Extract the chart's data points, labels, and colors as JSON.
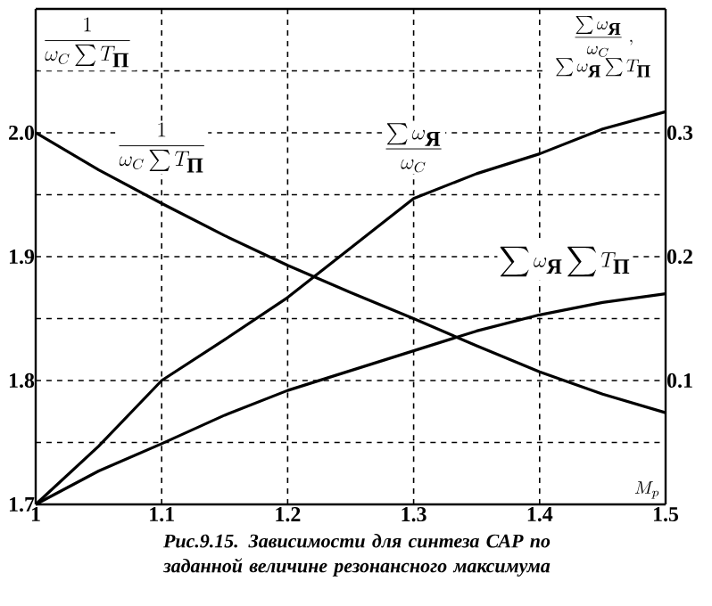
{
  "chart_data": {
    "type": "line",
    "xlabel": "M_{p}",
    "ylabel": "\\frac{1}{\\omega_{C}\\sum T_{\\mbox{П}}}",
    "y2label": "\\begin{array}{c}\\dfrac{\\sum\\omega_{\\mbox{Я}}}{\\omega_{C}}\\;,\\\\ \\sum\\omega_{\\mbox{Я}}\\sum T_{\\mbox{П}}\\end{array}",
    "x": [
      1,
      1.05,
      1.1,
      1.15,
      1.2,
      1.25,
      1.3,
      1.35,
      1.4,
      1.45,
      1.5
    ],
    "series": [
      {
        "name": "\\frac{1}{\\omega_{C}\\sum T_{\\mbox{П}}}",
        "color": "#000000",
        "values": [
          2.0,
          1.97,
          1.943,
          1.917,
          1.893,
          1.871,
          1.85,
          1.828,
          1.807,
          1.789,
          1.774
        ]
      },
      {
        "name": "\\frac{\\sum\\omega_{\\mbox{Я}}}{\\omega_{C}}",
        "color": "#000000",
        "axis": "y2",
        "values": [
          0,
          0.047,
          0.1,
          0.133,
          0.167,
          0.207,
          0.247,
          0.267,
          0.283,
          0.303,
          0.317
        ]
      },
      {
        "name": "\\sum\\omega_{\\mbox{Я}}\\sum T_{\\mbox{П}}",
        "color": "#000000",
        "axis": "y2",
        "values": [
          0,
          0.027,
          0.049,
          0.072,
          0.092,
          0.108,
          0.124,
          0.14,
          0.153,
          0.163,
          0.17
        ]
      }
    ],
    "xlim": [
      1,
      1.5
    ],
    "xticks": [
      1,
      1.1,
      1.2,
      1.3,
      1.4,
      1.5
    ],
    "ylim": [
      1.7,
      2.1
    ],
    "yticks": [
      1.7,
      {
        "value": 1.75,
        "label": null
      },
      1.8,
      {
        "value": 1.85,
        "label": null
      },
      1.9,
      {
        "value": 1.95,
        "label": null
      },
      {
        "value": 2.0,
        "label": "2.0"
      },
      {
        "value": 2.05,
        "label": null
      }
    ],
    "y2lim": [
      0,
      0.4
    ],
    "y2ticks": [
      0.1,
      0.2,
      0.3
    ],
    "grid": true,
    "annotations": [
      "Рис.9.15. Зависимости для синтеза САР по заданной величине резонансного максимума"
    ]
  }
}
